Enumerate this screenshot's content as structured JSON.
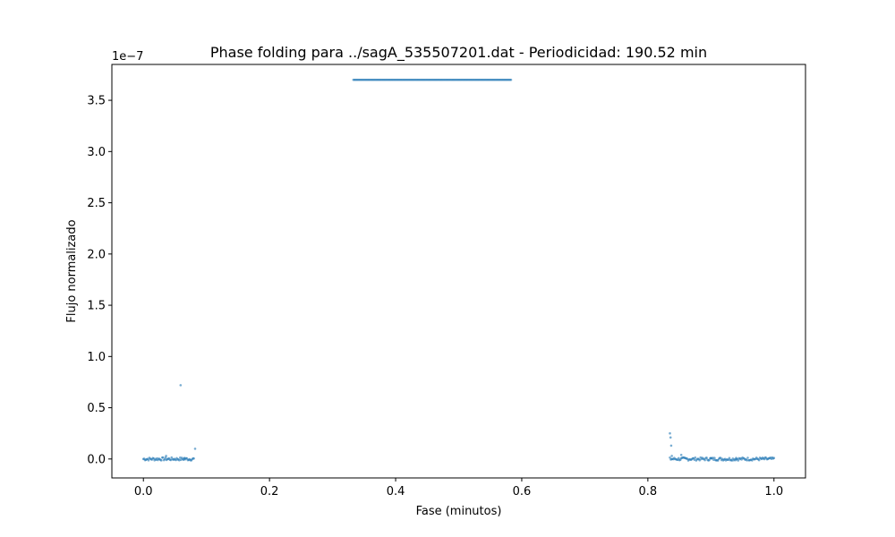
{
  "chart_data": {
    "type": "scatter",
    "title": "Phase folding para ../sagA_535507201.dat - Periodicidad: 190.52 min",
    "xlabel": "Fase (minutos)",
    "ylabel": "Flujo normalizado",
    "y_offset_label": "1e−7",
    "y_multiplier": 1e-07,
    "xlim": [
      -0.05,
      1.05
    ],
    "ylim": [
      -0.185,
      3.85
    ],
    "x_ticks": [
      0.0,
      0.2,
      0.4,
      0.6,
      0.8,
      1.0
    ],
    "x_tick_labels": [
      "0.0",
      "0.2",
      "0.4",
      "0.6",
      "0.8",
      "1.0"
    ],
    "y_ticks": [
      0.0,
      0.5,
      1.0,
      1.5,
      2.0,
      2.5,
      3.0,
      3.5
    ],
    "y_tick_labels": [
      "0.0",
      "0.5",
      "1.0",
      "1.5",
      "2.0",
      "2.5",
      "3.0",
      "3.5"
    ],
    "grid": false,
    "legend": "none",
    "series": [
      {
        "color": "#1f77b4",
        "marker_alpha": 0.6,
        "segments": [
          {
            "x_start": 0.0,
            "x_end": 0.08,
            "y_level": 0.0,
            "count": 60
          },
          {
            "x_start": 0.333,
            "x_end": 0.583,
            "y_level": 3.7,
            "count": 150
          },
          {
            "x_start": 0.835,
            "x_end": 1.0,
            "y_level": 0.0,
            "count": 120
          }
        ],
        "outliers": [
          {
            "x": 0.059,
            "y": 0.72
          },
          {
            "x": 0.082,
            "y": 0.1
          },
          {
            "x": 0.036,
            "y": 0.03
          },
          {
            "x": 0.065,
            "y": 0.01
          },
          {
            "x": 0.835,
            "y": 0.25
          },
          {
            "x": 0.836,
            "y": 0.21
          },
          {
            "x": 0.837,
            "y": 0.13
          },
          {
            "x": 0.838,
            "y": 0.03
          },
          {
            "x": 0.853,
            "y": 0.04
          },
          {
            "x": 0.9,
            "y": 0.01
          },
          {
            "x": 0.94,
            "y": 0.01
          }
        ]
      }
    ]
  }
}
